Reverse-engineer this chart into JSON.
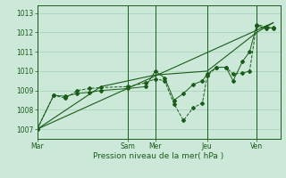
{
  "xlabel": "Pression niveau de la mer( hPa )",
  "bg_color": "#cce8d8",
  "grid_color": "#99ccaa",
  "line_color": "#1a5c1a",
  "ylim": [
    1006.5,
    1013.4
  ],
  "yticks": [
    1007,
    1008,
    1009,
    1010,
    1011,
    1012,
    1013
  ],
  "xtick_labels": [
    "Mar",
    "Sam",
    "Mer",
    "Jeu",
    "Ven"
  ],
  "xtick_positions": [
    0,
    0.385,
    0.5,
    0.72,
    0.93
  ],
  "series": [
    {
      "x": [
        0.0,
        0.07,
        0.12,
        0.17,
        0.22,
        0.27,
        0.385,
        0.46,
        0.5,
        0.54,
        0.58,
        0.62,
        0.66,
        0.7,
        0.72,
        0.76,
        0.8,
        0.83,
        0.87,
        0.9,
        0.93,
        0.97,
        1.0
      ],
      "y": [
        1007.0,
        1008.75,
        1008.7,
        1008.85,
        1008.9,
        1009.0,
        1009.1,
        1009.2,
        1010.0,
        1009.65,
        1008.5,
        1008.85,
        1009.3,
        1009.5,
        1009.85,
        1010.2,
        1010.2,
        1009.5,
        1010.5,
        1011.0,
        1012.35,
        1012.2,
        1012.25
      ]
    },
    {
      "x": [
        0.0,
        0.07,
        0.12,
        0.17,
        0.22,
        0.27,
        0.385,
        0.46,
        0.5,
        0.54,
        0.58,
        0.62,
        0.66,
        0.7,
        0.72,
        0.76,
        0.8,
        0.83,
        0.87,
        0.9,
        0.93,
        0.97,
        1.0
      ],
      "y": [
        1007.0,
        1008.75,
        1008.6,
        1009.0,
        1009.1,
        1009.15,
        1009.2,
        1009.4,
        1009.6,
        1009.5,
        1008.3,
        1007.45,
        1008.1,
        1008.35,
        1009.75,
        1010.2,
        1010.2,
        1009.85,
        1009.9,
        1010.0,
        1012.4,
        1012.3,
        1012.2
      ]
    },
    {
      "x": [
        0.0,
        1.0
      ],
      "y": [
        1007.0,
        1012.5
      ]
    },
    {
      "x": [
        0.0,
        0.27,
        0.5,
        0.72,
        0.93,
        1.0
      ],
      "y": [
        1007.0,
        1009.2,
        1009.8,
        1010.0,
        1012.0,
        1012.5
      ]
    }
  ]
}
